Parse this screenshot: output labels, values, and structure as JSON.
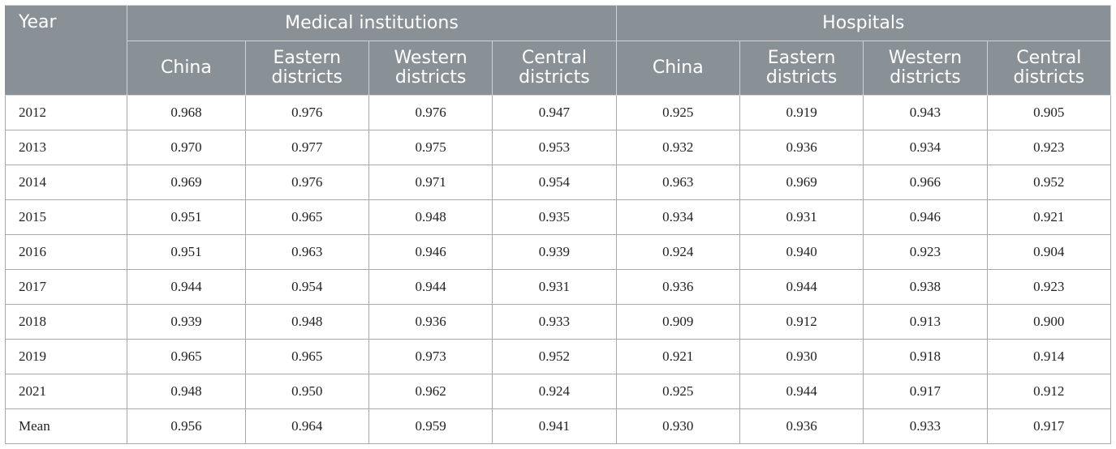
{
  "header": {
    "year": "Year",
    "groups": [
      "Medical institutions",
      "Hospitals"
    ],
    "subheaders": [
      [
        "China"
      ],
      [
        "Eastern",
        "districts"
      ],
      [
        "Western",
        "districts"
      ],
      [
        "Central",
        "districts"
      ],
      [
        "China"
      ],
      [
        "Eastern",
        "districts"
      ],
      [
        "Western",
        "districts"
      ],
      [
        "Central",
        "districts"
      ]
    ]
  },
  "rows": [
    [
      "2012",
      "0.968",
      "0.976",
      "0.976",
      "0.947",
      "0.925",
      "0.919",
      "0.943",
      "0.905"
    ],
    [
      "2013",
      "0.970",
      "0.977",
      "0.975",
      "0.953",
      "0.932",
      "0.936",
      "0.934",
      "0.923"
    ],
    [
      "2014",
      "0.969",
      "0.976",
      "0.971",
      "0.954",
      "0.963",
      "0.969",
      "0.966",
      "0.952"
    ],
    [
      "2015",
      "0.951",
      "0.965",
      "0.948",
      "0.935",
      "0.934",
      "0.931",
      "0.946",
      "0.921"
    ],
    [
      "2016",
      "0.951",
      "0.963",
      "0.946",
      "0.939",
      "0.924",
      "0.940",
      "0.923",
      "0.904"
    ],
    [
      "2017",
      "0.944",
      "0.954",
      "0.944",
      "0.931",
      "0.936",
      "0.944",
      "0.938",
      "0.923"
    ],
    [
      "2018",
      "0.939",
      "0.948",
      "0.936",
      "0.933",
      "0.909",
      "0.912",
      "0.913",
      "0.900"
    ],
    [
      "2019",
      "0.965",
      "0.965",
      "0.973",
      "0.952",
      "0.921",
      "0.930",
      "0.918",
      "0.914"
    ],
    [
      "2021",
      "0.948",
      "0.950",
      "0.962",
      "0.924",
      "0.925",
      "0.944",
      "0.917",
      "0.912"
    ],
    [
      "Mean",
      "0.956",
      "0.964",
      "0.959",
      "0.941",
      "0.930",
      "0.936",
      "0.933",
      "0.917"
    ]
  ]
}
